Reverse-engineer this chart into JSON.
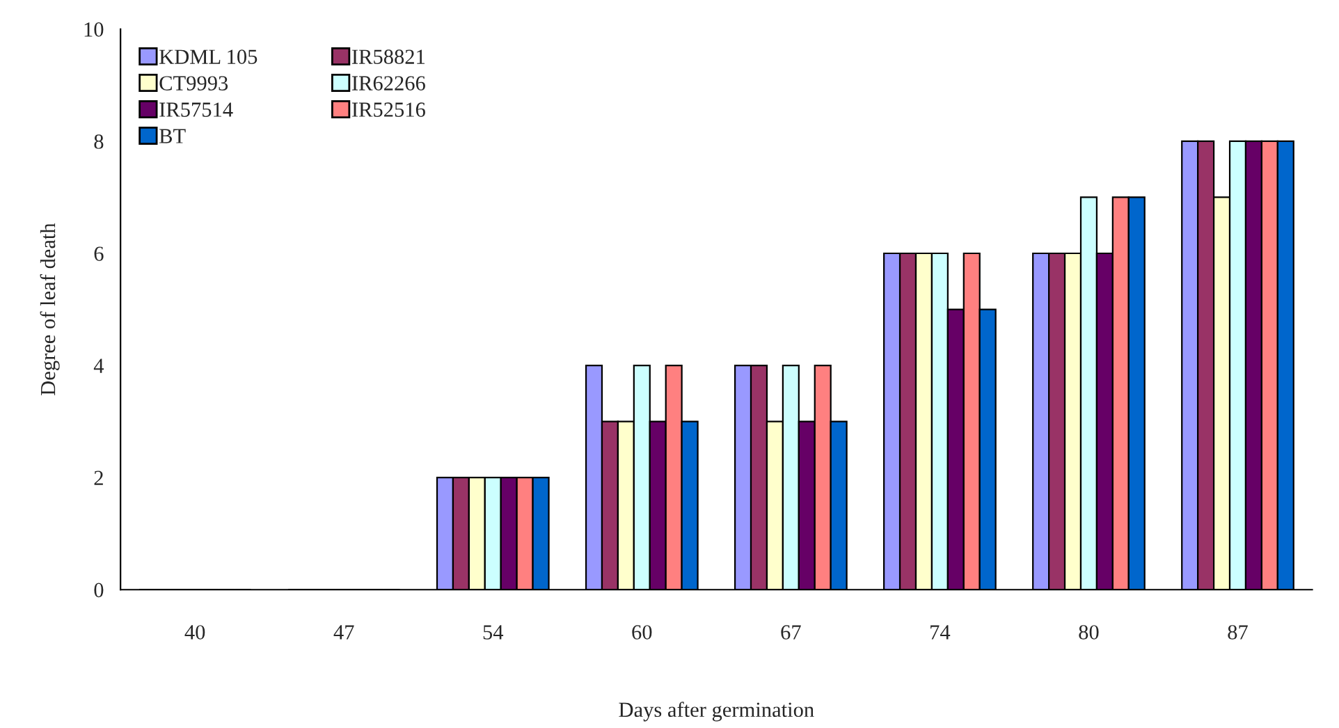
{
  "chart_data": {
    "type": "bar",
    "xlabel": "Days after germination",
    "ylabel": "Degree of leaf death",
    "categories": [
      "40",
      "47",
      "54",
      "60",
      "67",
      "74",
      "80",
      "87"
    ],
    "series": [
      {
        "name": "KDML 105",
        "color": "#9999ff",
        "values": [
          0,
          0,
          2,
          4,
          4,
          6,
          6,
          8
        ]
      },
      {
        "name": "IR58821",
        "color": "#993366",
        "values": [
          0,
          0,
          2,
          3,
          4,
          6,
          6,
          8
        ]
      },
      {
        "name": "CT9993",
        "color": "#ffffcc",
        "values": [
          0,
          0,
          2,
          3,
          3,
          6,
          6,
          7
        ]
      },
      {
        "name": "IR62266",
        "color": "#ccffff",
        "values": [
          0,
          0,
          2,
          4,
          4,
          6,
          7,
          8
        ]
      },
      {
        "name": "IR57514",
        "color": "#660066",
        "values": [
          0,
          0,
          2,
          3,
          3,
          5,
          6,
          8
        ]
      },
      {
        "name": "IR52516",
        "color": "#ff8080",
        "values": [
          0,
          0,
          2,
          4,
          4,
          6,
          7,
          8
        ]
      },
      {
        "name": "BT",
        "color": "#0066cc",
        "values": [
          0,
          0,
          2,
          3,
          3,
          5,
          7,
          8
        ]
      }
    ],
    "ylim": [
      0,
      10
    ],
    "yticks": [
      0,
      2,
      4,
      6,
      8,
      10
    ],
    "grid": false,
    "legend": "top left"
  }
}
